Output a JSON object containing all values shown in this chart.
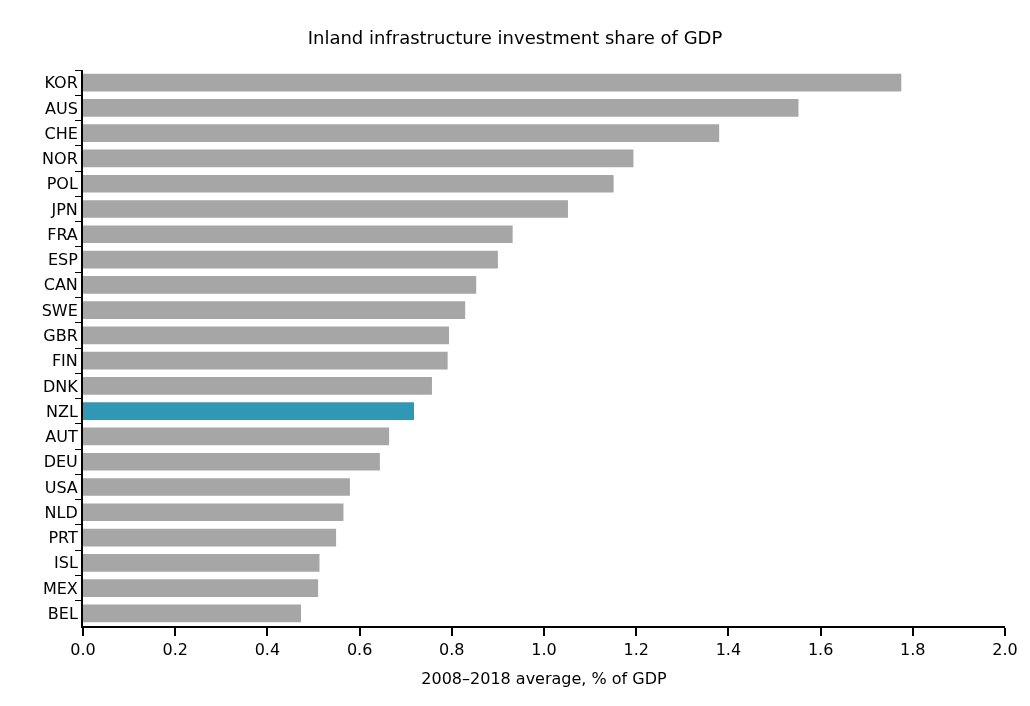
{
  "chart_data": {
    "type": "bar",
    "orientation": "horizontal",
    "title": "Inland infrastructure investment share of GDP",
    "xlabel": "2008–2018 average, % of GDP",
    "categories": [
      "KOR",
      "AUS",
      "CHE",
      "NOR",
      "POL",
      "JPN",
      "FRA",
      "ESP",
      "CAN",
      "SWE",
      "GBR",
      "FIN",
      "DNK",
      "NZL",
      "AUT",
      "DEU",
      "USA",
      "NLD",
      "PRT",
      "ISL",
      "MEX",
      "BEL"
    ],
    "values": [
      1.775,
      1.552,
      1.38,
      1.194,
      1.151,
      1.052,
      0.932,
      0.9,
      0.853,
      0.829,
      0.794,
      0.791,
      0.757,
      0.718,
      0.664,
      0.644,
      0.579,
      0.565,
      0.549,
      0.513,
      0.51,
      0.473
    ],
    "colors": [
      "#a6a6a6",
      "#a6a6a6",
      "#a6a6a6",
      "#a6a6a6",
      "#a6a6a6",
      "#a6a6a6",
      "#a6a6a6",
      "#a6a6a6",
      "#a6a6a6",
      "#a6a6a6",
      "#a6a6a6",
      "#a6a6a6",
      "#a6a6a6",
      "#3097b4",
      "#a6a6a6",
      "#a6a6a6",
      "#a6a6a6",
      "#a6a6a6",
      "#a6a6a6",
      "#a6a6a6",
      "#a6a6a6",
      "#a6a6a6"
    ],
    "xlim": [
      0,
      2.0
    ],
    "xticks": [
      {
        "value": 0,
        "label": "0.0"
      },
      {
        "value": 0.2,
        "label": "0.2"
      },
      {
        "value": 0.4,
        "label": "0.4"
      },
      {
        "value": 0.6,
        "label": "0.6"
      },
      {
        "value": 0.8,
        "label": "0.8"
      },
      {
        "value": 1.0,
        "label": "1.0"
      },
      {
        "value": 1.2,
        "label": "1.2"
      },
      {
        "value": 1.4,
        "label": "1.4"
      },
      {
        "value": 1.6,
        "label": "1.6"
      },
      {
        "value": 1.8,
        "label": "1.8"
      },
      {
        "value": 2.0,
        "label": "2.0"
      }
    ]
  }
}
